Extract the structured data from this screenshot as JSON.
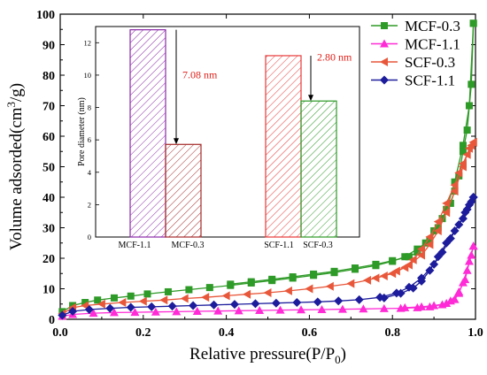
{
  "chart_data": [
    {
      "type": "line",
      "xlabel": "Relative pressure(P/P",
      "xlabel_sub": "0",
      "xlabel_end": ")",
      "ylabel": "Volume adsorded(cm",
      "ylabel_sup": "3",
      "ylabel_end": "/g)",
      "xlim": [
        0.0,
        1.0
      ],
      "ylim": [
        0,
        100
      ],
      "x_ticks": [
        "0.0",
        "0.2",
        "0.4",
        "0.6",
        "0.8",
        "1.0"
      ],
      "y_ticks": [
        "0",
        "10",
        "20",
        "30",
        "40",
        "50",
        "60",
        "70",
        "80",
        "90",
        "100"
      ],
      "legend_position": "top-right",
      "series": [
        {
          "name": "MCF-0.3",
          "color": "#2e9a27",
          "marker": "square",
          "adsorption": [
            [
              0.005,
              2.5
            ],
            [
              0.03,
              4.5
            ],
            [
              0.06,
              5.5
            ],
            [
              0.09,
              6.3
            ],
            [
              0.13,
              7.0
            ],
            [
              0.17,
              7.6
            ],
            [
              0.21,
              8.3
            ],
            [
              0.26,
              9.0
            ],
            [
              0.31,
              9.7
            ],
            [
              0.36,
              10.4
            ],
            [
              0.41,
              11.1
            ],
            [
              0.46,
              11.9
            ],
            [
              0.51,
              12.7
            ],
            [
              0.56,
              13.5
            ],
            [
              0.61,
              14.4
            ],
            [
              0.66,
              15.3
            ],
            [
              0.71,
              16.4
            ],
            [
              0.76,
              17.6
            ],
            [
              0.8,
              19.0
            ],
            [
              0.83,
              20.5
            ],
            [
              0.86,
              23.0
            ],
            [
              0.89,
              26.0
            ],
            [
              0.91,
              30.0
            ],
            [
              0.93,
              36.0
            ],
            [
              0.95,
              45.0
            ],
            [
              0.97,
              57.0
            ],
            [
              0.985,
              70.0
            ],
            [
              0.995,
              97.0
            ]
          ],
          "desorption": [
            [
              0.995,
              97.0
            ],
            [
              0.99,
              77.0
            ],
            [
              0.98,
              62.0
            ],
            [
              0.97,
              55.0
            ],
            [
              0.96,
              47.0
            ],
            [
              0.95,
              42.0
            ],
            [
              0.94,
              38.0
            ],
            [
              0.92,
              33.0
            ],
            [
              0.9,
              29.0
            ],
            [
              0.88,
              25.0
            ],
            [
              0.86,
              22.0
            ],
            [
              0.84,
              20.5
            ],
            [
              0.8,
              19.2
            ],
            [
              0.76,
              18.0
            ],
            [
              0.71,
              16.8
            ],
            [
              0.66,
              15.7
            ],
            [
              0.61,
              14.8
            ],
            [
              0.56,
              13.9
            ],
            [
              0.51,
              13.1
            ],
            [
              0.46,
              12.3
            ],
            [
              0.41,
              11.5
            ]
          ]
        },
        {
          "name": "MCF-1.1",
          "color": "#ff2bd6",
          "marker": "triangle-up",
          "adsorption": [
            [
              0.005,
              1.0
            ],
            [
              0.03,
              1.6
            ],
            [
              0.08,
              2.0
            ],
            [
              0.13,
              2.2
            ],
            [
              0.18,
              2.3
            ],
            [
              0.23,
              2.4
            ],
            [
              0.28,
              2.5
            ],
            [
              0.33,
              2.6
            ],
            [
              0.38,
              2.7
            ],
            [
              0.43,
              2.8
            ],
            [
              0.48,
              2.9
            ],
            [
              0.53,
              3.0
            ],
            [
              0.58,
              3.1
            ],
            [
              0.63,
              3.2
            ],
            [
              0.68,
              3.3
            ],
            [
              0.73,
              3.4
            ],
            [
              0.78,
              3.5
            ],
            [
              0.82,
              3.6
            ],
            [
              0.86,
              3.8
            ],
            [
              0.89,
              4.1
            ],
            [
              0.92,
              4.8
            ],
            [
              0.94,
              6.0
            ],
            [
              0.96,
              9.0
            ],
            [
              0.975,
              13.0
            ],
            [
              0.985,
              19.0
            ],
            [
              0.995,
              24.0
            ]
          ],
          "desorption": [
            [
              0.995,
              24.0
            ],
            [
              0.99,
              21.0
            ],
            [
              0.98,
              16.0
            ],
            [
              0.97,
              12.0
            ],
            [
              0.96,
              8.5
            ],
            [
              0.95,
              6.5
            ],
            [
              0.93,
              5.2
            ],
            [
              0.9,
              4.5
            ],
            [
              0.87,
              4.1
            ],
            [
              0.83,
              3.8
            ]
          ]
        },
        {
          "name": "SCF-0.3",
          "color": "#e8573a",
          "marker": "triangle-left",
          "adsorption": [
            [
              0.005,
              1.8
            ],
            [
              0.03,
              3.8
            ],
            [
              0.06,
              4.5
            ],
            [
              0.1,
              5.0
            ],
            [
              0.15,
              5.5
            ],
            [
              0.2,
              5.9
            ],
            [
              0.25,
              6.3
            ],
            [
              0.3,
              6.8
            ],
            [
              0.35,
              7.2
            ],
            [
              0.4,
              7.7
            ],
            [
              0.45,
              8.2
            ],
            [
              0.5,
              8.7
            ],
            [
              0.55,
              9.3
            ],
            [
              0.6,
              10.0
            ],
            [
              0.65,
              10.8
            ],
            [
              0.7,
              11.7
            ],
            [
              0.74,
              12.8
            ],
            [
              0.78,
              14.2
            ],
            [
              0.81,
              15.8
            ],
            [
              0.84,
              17.8
            ],
            [
              0.87,
              21.0
            ],
            [
              0.89,
              24.5
            ],
            [
              0.91,
              29.0
            ],
            [
              0.93,
              35.0
            ],
            [
              0.95,
              42.0
            ],
            [
              0.97,
              50.0
            ],
            [
              0.985,
              56.0
            ],
            [
              0.995,
              58.0
            ]
          ],
          "desorption": [
            [
              0.995,
              58.0
            ],
            [
              0.99,
              57.0
            ],
            [
              0.98,
              54.0
            ],
            [
              0.97,
              51.0
            ],
            [
              0.96,
              48.0
            ],
            [
              0.95,
              44.0
            ],
            [
              0.93,
              38.0
            ],
            [
              0.91,
              32.0
            ],
            [
              0.89,
              27.0
            ],
            [
              0.87,
              23.0
            ],
            [
              0.85,
              19.5
            ],
            [
              0.83,
              17.0
            ],
            [
              0.8,
              15.0
            ],
            [
              0.76,
              13.5
            ]
          ]
        },
        {
          "name": "SCF-1.1",
          "color": "#1c1c9c",
          "marker": "diamond",
          "adsorption": [
            [
              0.005,
              1.3
            ],
            [
              0.03,
              2.6
            ],
            [
              0.07,
              3.2
            ],
            [
              0.12,
              3.6
            ],
            [
              0.17,
              3.9
            ],
            [
              0.22,
              4.1
            ],
            [
              0.27,
              4.3
            ],
            [
              0.32,
              4.5
            ],
            [
              0.37,
              4.7
            ],
            [
              0.42,
              4.9
            ],
            [
              0.47,
              5.1
            ],
            [
              0.52,
              5.3
            ],
            [
              0.57,
              5.5
            ],
            [
              0.62,
              5.7
            ],
            [
              0.67,
              6.0
            ],
            [
              0.72,
              6.4
            ],
            [
              0.77,
              7.2
            ],
            [
              0.81,
              8.6
            ],
            [
              0.84,
              10.5
            ],
            [
              0.87,
              13.5
            ],
            [
              0.9,
              18.0
            ],
            [
              0.92,
              22.0
            ],
            [
              0.94,
              26.5
            ],
            [
              0.96,
              31.0
            ],
            [
              0.975,
              35.0
            ],
            [
              0.985,
              37.5
            ],
            [
              0.995,
              40.0
            ]
          ],
          "desorption": [
            [
              0.995,
              40.0
            ],
            [
              0.99,
              38.5
            ],
            [
              0.98,
              36.0
            ],
            [
              0.97,
              33.0
            ],
            [
              0.95,
              29.0
            ],
            [
              0.93,
              25.0
            ],
            [
              0.91,
              20.5
            ],
            [
              0.89,
              16.0
            ],
            [
              0.87,
              12.5
            ],
            [
              0.85,
              10.2
            ],
            [
              0.82,
              8.5
            ],
            [
              0.78,
              7.0
            ]
          ]
        }
      ]
    },
    {
      "type": "bar",
      "position": "inset",
      "ylabel": "Pore diameter (nm)",
      "ylim": [
        0,
        13
      ],
      "y_ticks": [
        "0",
        "2",
        "4",
        "6",
        "8",
        "10",
        "12"
      ],
      "bars": [
        {
          "label": "MCF-1.1",
          "value": 12.8,
          "color": "#8b2aa8",
          "group": "MCF"
        },
        {
          "label": "MCF-0.3",
          "value": 5.72,
          "color": "#a52a2a",
          "group": "MCF"
        },
        {
          "label": "SCF-1.1",
          "value": 11.2,
          "color": "#e83a3a",
          "group": "SCF"
        },
        {
          "label": "SCF-0.3",
          "value": 8.4,
          "color": "#2e9a27",
          "group": "SCF"
        }
      ],
      "annotations": [
        {
          "text": "7.08 nm",
          "group": "MCF",
          "color": "#e0201a"
        },
        {
          "text": "2.80 nm",
          "group": "SCF",
          "color": "#e0201a"
        }
      ]
    }
  ]
}
